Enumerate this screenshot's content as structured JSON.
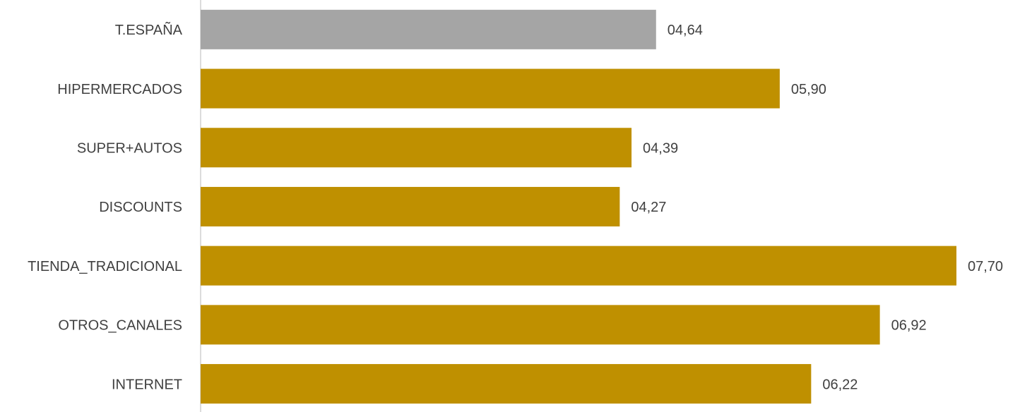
{
  "chart_data": {
    "type": "bar",
    "orientation": "horizontal",
    "categories": [
      "T.ESPAÑA",
      "HIPERMERCADOS",
      "SUPER+AUTOS",
      "DISCOUNTS",
      "TIENDA_TRADICIONAL",
      "OTROS_CANALES",
      "INTERNET"
    ],
    "values": [
      4.64,
      5.9,
      4.39,
      4.27,
      7.7,
      6.92,
      6.22
    ],
    "value_labels": [
      "04,64",
      "05,90",
      "04,39",
      "04,27",
      "07,70",
      "06,92",
      "06,22"
    ],
    "colors": [
      "#a5a5a5",
      "#bf9000",
      "#bf9000",
      "#bf9000",
      "#bf9000",
      "#bf9000",
      "#bf9000"
    ]
  }
}
